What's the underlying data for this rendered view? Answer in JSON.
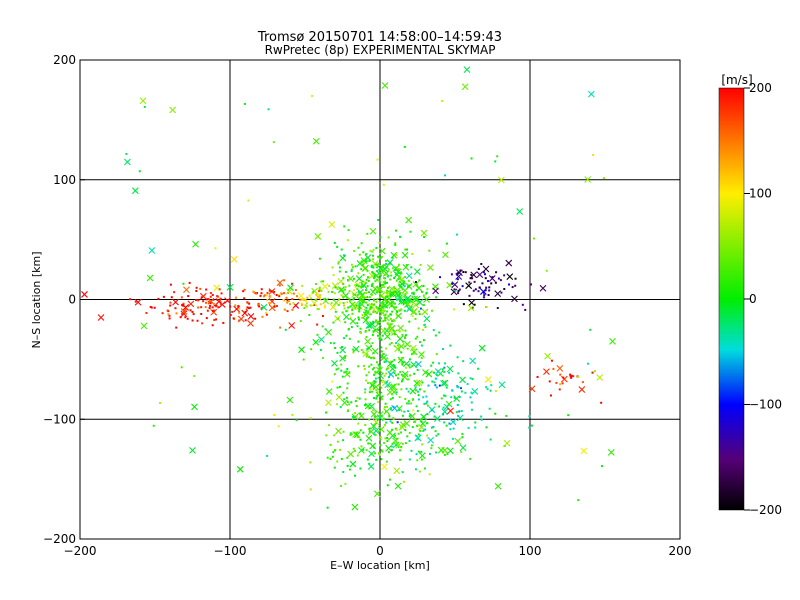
{
  "chart_data": {
    "type": "scatter",
    "title": "Tromsø 20150701 14:58:00–14:59:43",
    "subtitle": "RwPretec (8p) EXPERIMENTAL SKYMAP",
    "xlabel": "E–W location [km]",
    "ylabel": "N–S location [km]",
    "xlim": [
      -200,
      200
    ],
    "ylim": [
      -200,
      200
    ],
    "x_ticks": [
      "−200",
      "−100",
      "0",
      "100",
      "200"
    ],
    "y_ticks": [
      "200",
      "100",
      "0",
      "−100",
      "−200"
    ],
    "grid": true,
    "colorbar": {
      "label": "[m/s]",
      "range": [
        -200,
        200
      ],
      "ticks": [
        "200",
        "100",
        "0",
        "−100",
        "−200"
      ]
    },
    "clusters": [
      {
        "x": -110,
        "y": -5,
        "sx": 25,
        "sy": 8,
        "v": 195,
        "n": 150
      },
      {
        "x": -70,
        "y": 0,
        "sx": 12,
        "sy": 6,
        "v": 150,
        "n": 50
      },
      {
        "x": -48,
        "y": 0,
        "sx": 8,
        "sy": 6,
        "v": 95,
        "n": 30
      },
      {
        "x": -25,
        "y": 0,
        "sx": 10,
        "sy": 8,
        "v": 60,
        "n": 40
      },
      {
        "x": 0,
        "y": 5,
        "sx": 18,
        "sy": 22,
        "v": 20,
        "n": 500
      },
      {
        "x": 0,
        "y": -55,
        "sx": 20,
        "sy": 25,
        "v": 15,
        "n": 250
      },
      {
        "x": 0,
        "y": -115,
        "sx": 22,
        "sy": 22,
        "v": 25,
        "n": 200
      },
      {
        "x": 40,
        "y": -85,
        "sx": 18,
        "sy": 22,
        "v": -30,
        "n": 150
      },
      {
        "x": 70,
        "y": 12,
        "sx": 15,
        "sy": 10,
        "v": -160,
        "n": 80
      },
      {
        "x": 122,
        "y": -68,
        "sx": 8,
        "sy": 8,
        "v": 195,
        "n": 25
      }
    ],
    "scattered_crosses": [
      {
        "x": -158,
        "y": 166,
        "v": 60
      },
      {
        "x": 58,
        "y": 192,
        "v": -20
      },
      {
        "x": -125,
        "y": -126,
        "v": -10
      },
      {
        "x": -186,
        "y": -15,
        "v": 195
      },
      {
        "x": 47,
        "y": -93,
        "v": 190
      },
      {
        "x": 155,
        "y": -35,
        "v": 20
      }
    ]
  }
}
